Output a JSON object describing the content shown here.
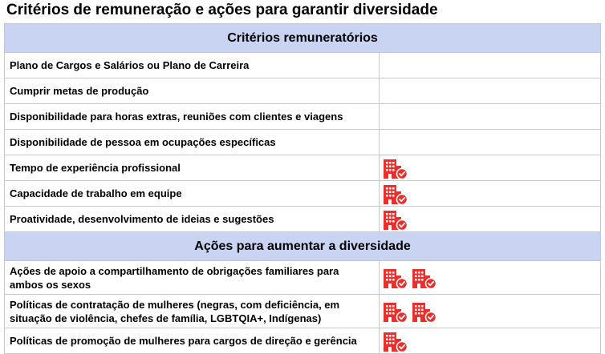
{
  "title": "Critérios de remuneração e ações para garantir diversidade",
  "section_1": {
    "header": "Critérios remuneratórios",
    "rows": [
      {
        "label": "Plano de Cargos e Salários ou Plano de Carreira",
        "icons": 0
      },
      {
        "label": "Cumprir metas de produção",
        "icons": 0
      },
      {
        "label": "Disponibilidade para horas extras, reuniões com clientes e viagens",
        "icons": 0
      },
      {
        "label": "Disponibilidade de pessoa em ocupações específicas",
        "icons": 0
      },
      {
        "label": "Tempo de experiência profissional",
        "icons": 1
      },
      {
        "label": "Capacidade de trabalho em equipe",
        "icons": 1
      },
      {
        "label": "Proatividade, desenvolvimento de ideias e sugestões",
        "icons": 1
      }
    ]
  },
  "section_2": {
    "header": "Ações para aumentar a diversidade",
    "rows": [
      {
        "label": "Ações de apoio a compartilhamento de obrigações familiares para ambos os sexos",
        "icons": 2
      },
      {
        "label": "Políticas de contratação de mulheres (negras, com deficiência, em situação de violência, chefes de família, LGBTQIA+, Indígenas)",
        "icons": 2
      },
      {
        "label": "Políticas de promoção de mulheres para cargos de direção e gerência",
        "icons": 1
      }
    ]
  },
  "icon": {
    "name": "building-check-icon",
    "color": "#e8302d"
  }
}
